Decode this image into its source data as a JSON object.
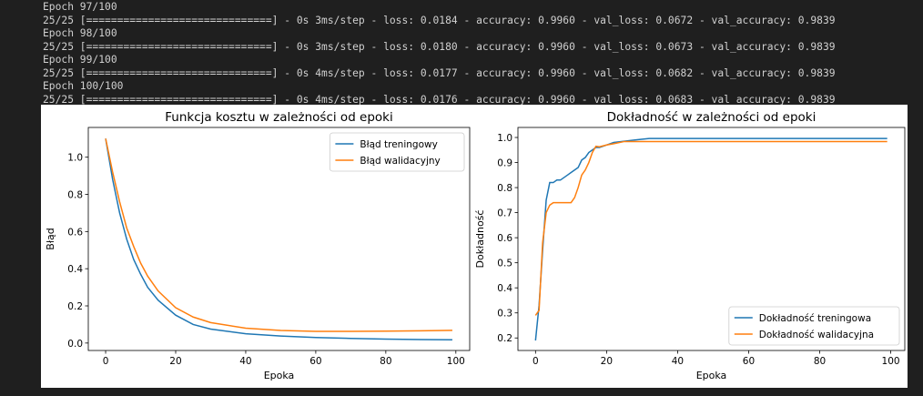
{
  "terminal": {
    "lines": [
      "Epoch 97/100",
      "25/25 [==============================] - 0s 3ms/step - loss: 0.0184 - accuracy: 0.9960 - val_loss: 0.0672 - val_accuracy: 0.9839",
      "Epoch 98/100",
      "25/25 [==============================] - 0s 3ms/step - loss: 0.0180 - accuracy: 0.9960 - val_loss: 0.0673 - val_accuracy: 0.9839",
      "Epoch 99/100",
      "25/25 [==============================] - 0s 4ms/step - loss: 0.0177 - accuracy: 0.9960 - val_loss: 0.0682 - val_accuracy: 0.9839",
      "Epoch 100/100",
      "25/25 [==============================] - 0s 4ms/step - loss: 0.0176 - accuracy: 0.9960 - val_loss: 0.0683 - val_accuracy: 0.9839"
    ]
  },
  "chart_data": [
    {
      "type": "line",
      "title": "Funkcja kosztu w zależności od epoki",
      "x_label": "Epoka",
      "y_label": "Błąd",
      "x": [
        0,
        2,
        4,
        6,
        8,
        10,
        12,
        15,
        20,
        25,
        30,
        40,
        50,
        60,
        70,
        80,
        90,
        99
      ],
      "series": [
        {
          "name": "Błąd treningowy",
          "color": "#1f77b4",
          "values": [
            1.1,
            0.88,
            0.7,
            0.56,
            0.45,
            0.37,
            0.3,
            0.23,
            0.15,
            0.1,
            0.075,
            0.05,
            0.038,
            0.03,
            0.025,
            0.021,
            0.019,
            0.0176
          ]
        },
        {
          "name": "Błąd walidacyjny",
          "color": "#ff7f0e",
          "values": [
            1.1,
            0.92,
            0.76,
            0.62,
            0.52,
            0.43,
            0.36,
            0.28,
            0.19,
            0.14,
            0.11,
            0.08,
            0.068,
            0.063,
            0.063,
            0.064,
            0.066,
            0.0683
          ]
        }
      ],
      "xlim": [
        -4.95,
        103.95
      ],
      "ylim": [
        -0.04,
        1.16
      ],
      "xticks": [
        0,
        20,
        40,
        60,
        80,
        100
      ],
      "yticks": [
        {
          "value": 0,
          "label": "0.0"
        },
        0.2,
        0.4,
        0.6,
        0.8,
        {
          "value": 1,
          "label": "1.0"
        }
      ],
      "legend": "upper right"
    },
    {
      "type": "line",
      "title": "Dokładność w zależności od epoki",
      "x_label": "Epoka",
      "y_label": "Dokładność",
      "x": [
        0,
        1,
        2,
        3,
        4,
        5,
        6,
        7,
        8,
        9,
        10,
        11,
        12,
        13,
        14,
        15,
        16,
        17,
        18,
        20,
        22,
        25,
        28,
        32,
        40,
        60,
        80,
        99
      ],
      "series": [
        {
          "name": "Dokładność treningowa",
          "color": "#1f77b4",
          "values": [
            0.19,
            0.33,
            0.55,
            0.75,
            0.82,
            0.82,
            0.83,
            0.83,
            0.84,
            0.85,
            0.86,
            0.87,
            0.88,
            0.91,
            0.92,
            0.94,
            0.95,
            0.96,
            0.96,
            0.97,
            0.98,
            0.985,
            0.99,
            0.996,
            0.996,
            0.996,
            0.996,
            0.996
          ]
        },
        {
          "name": "Dokładność walidacyjna",
          "color": "#ff7f0e",
          "values": [
            0.29,
            0.31,
            0.58,
            0.7,
            0.73,
            0.74,
            0.74,
            0.74,
            0.74,
            0.74,
            0.74,
            0.76,
            0.8,
            0.85,
            0.87,
            0.9,
            0.94,
            0.965,
            0.963,
            0.97,
            0.975,
            0.9839,
            0.9839,
            0.9839,
            0.9839,
            0.9839,
            0.9839,
            0.9839
          ]
        }
      ],
      "xlim": [
        -4.95,
        103.95
      ],
      "ylim": [
        0.15,
        1.04
      ],
      "xticks": [
        0,
        20,
        40,
        60,
        80,
        100
      ],
      "yticks": [
        0.2,
        0.3,
        0.4,
        0.5,
        0.6,
        0.7,
        0.8,
        0.9,
        {
          "value": 1,
          "label": "1.0"
        }
      ],
      "legend": "lower right"
    }
  ]
}
